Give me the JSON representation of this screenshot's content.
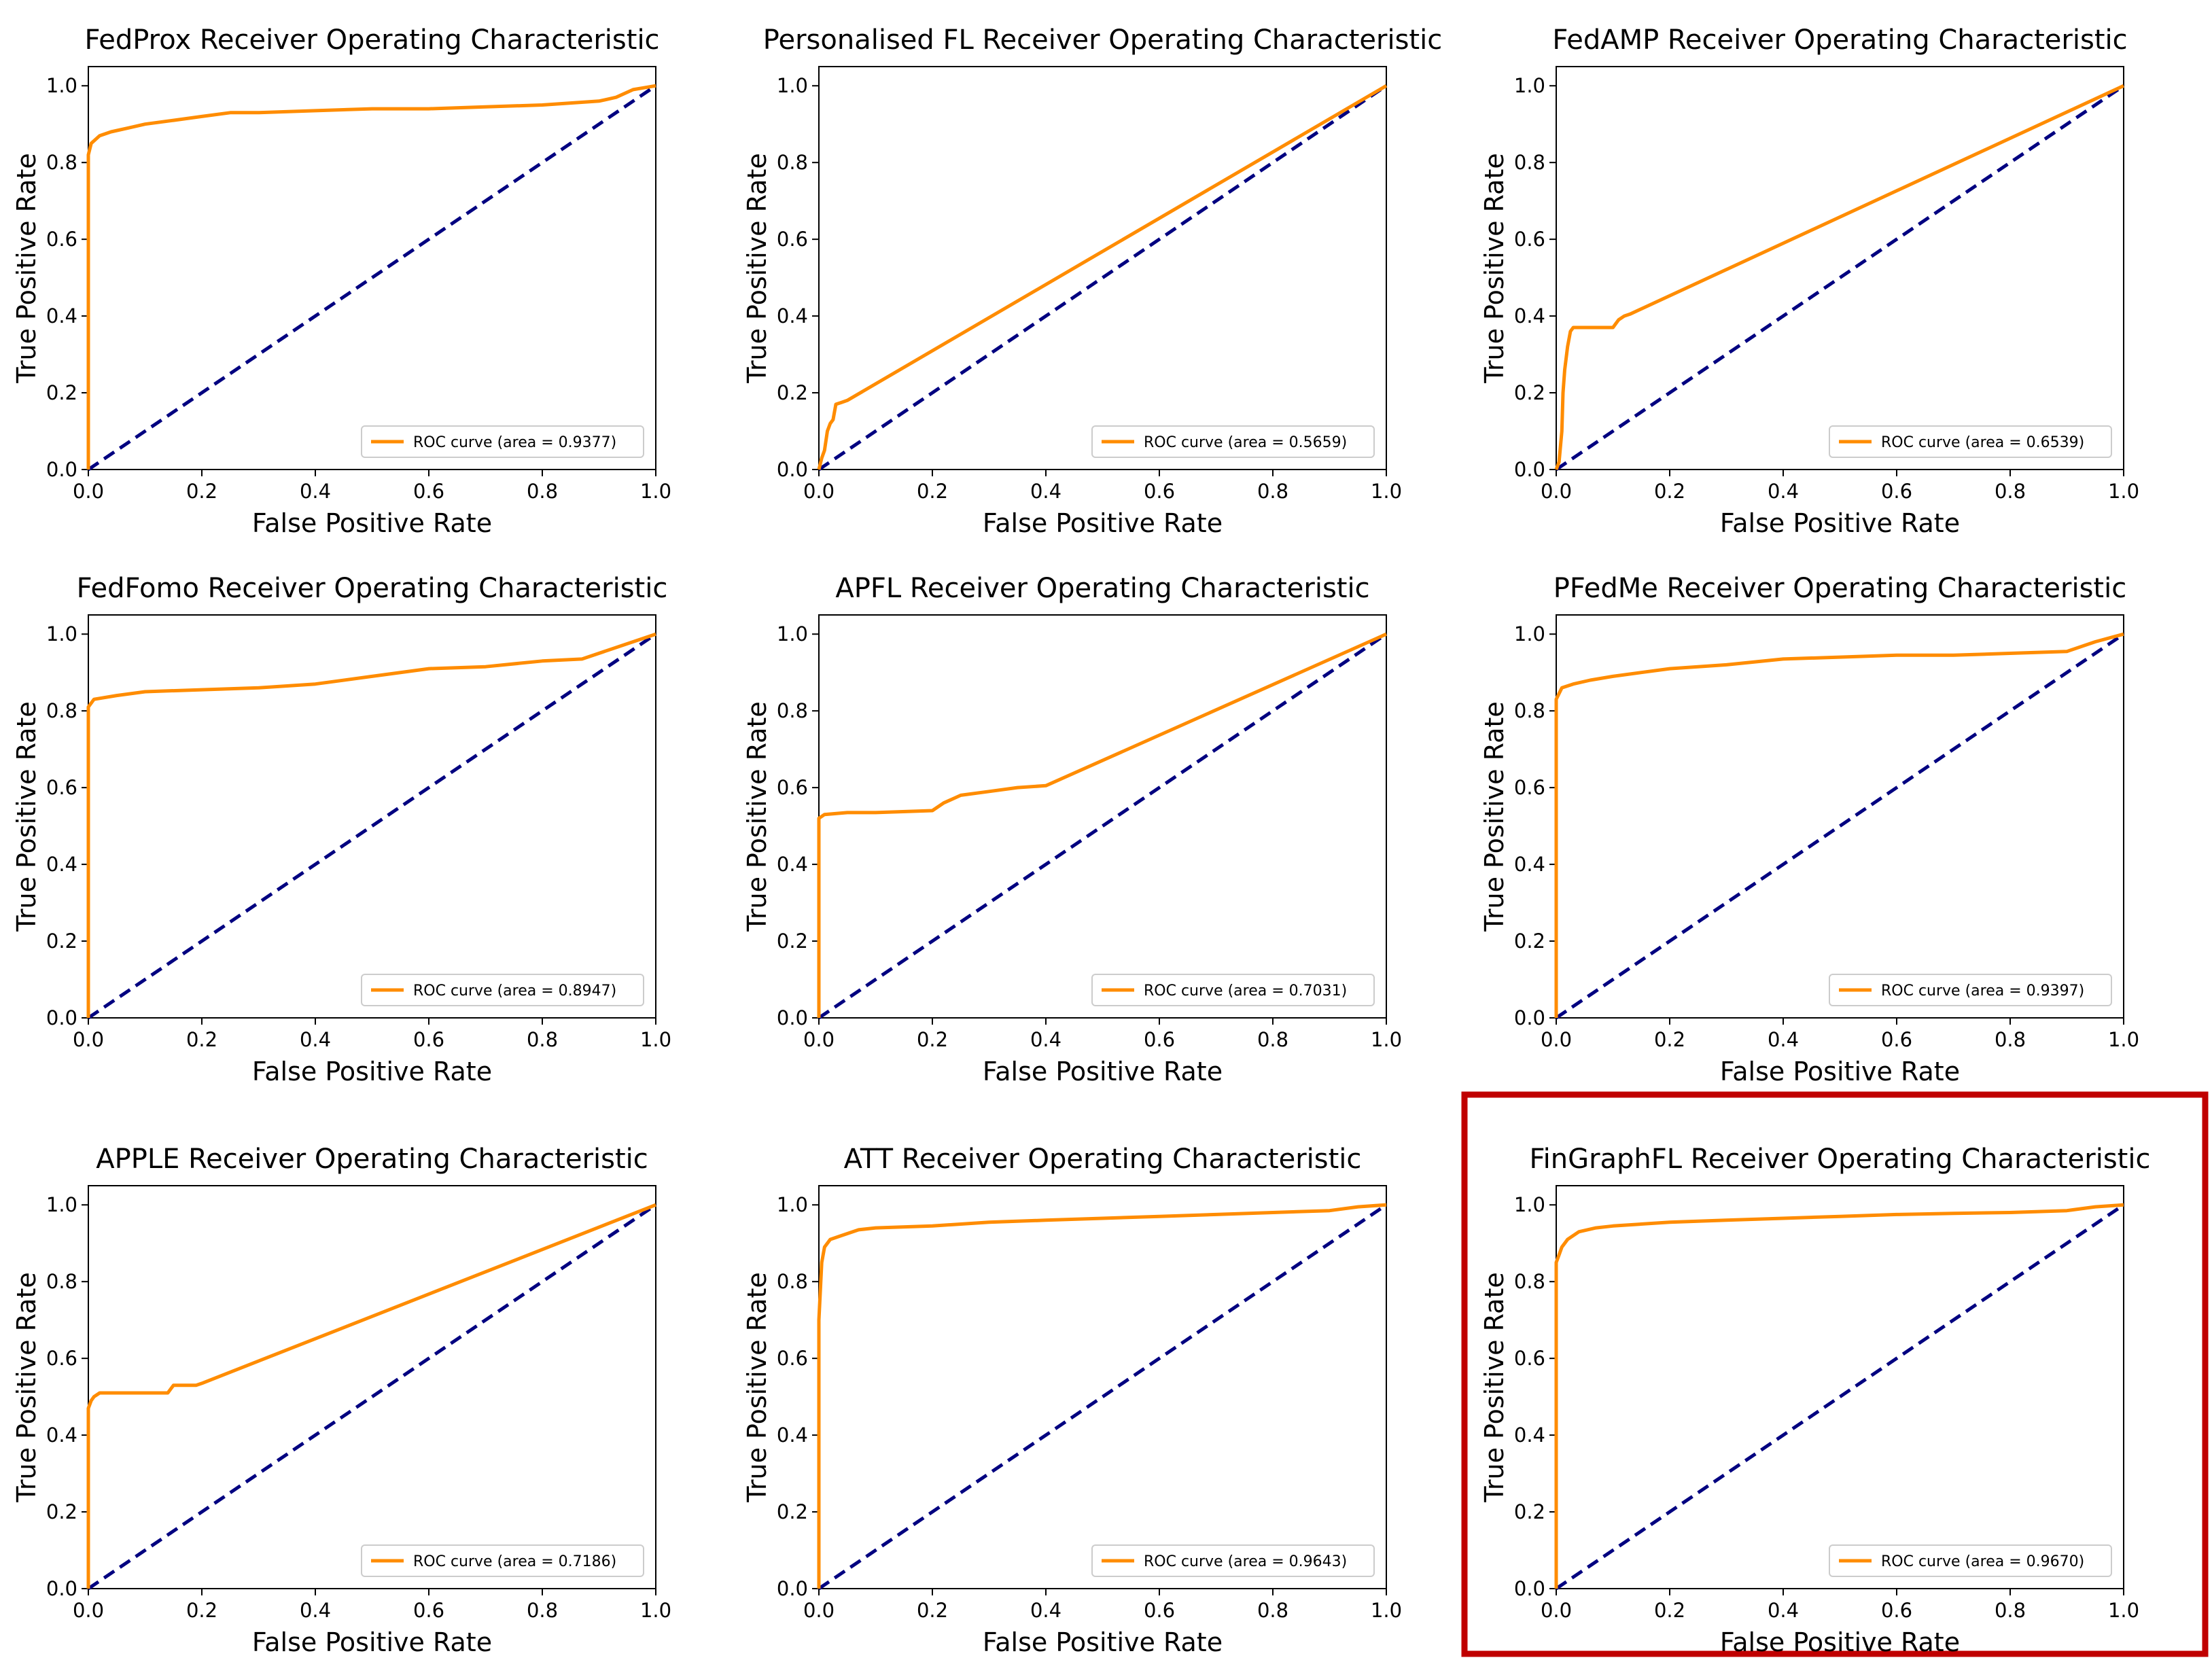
{
  "highlight_color": "#c00000",
  "colors": {
    "roc": "#ff8c00",
    "chance": "#000080",
    "frame": "#000000"
  },
  "axis": {
    "xlabel": "False Positive Rate",
    "ylabel": "True Positive Rate",
    "xlim": [
      0,
      1
    ],
    "ylim": [
      0,
      1.05
    ],
    "xticks": [
      0.0,
      0.2,
      0.4,
      0.6,
      0.8,
      1.0
    ],
    "yticks": [
      0.0,
      0.2,
      0.4,
      0.6,
      0.8,
      1.0
    ],
    "tick_labels": [
      "0.0",
      "0.2",
      "0.4",
      "0.6",
      "0.8",
      "1.0"
    ]
  },
  "chart_data": [
    {
      "type": "line",
      "title": "FedProx Receiver Operating Characteristic",
      "legend": "ROC curve (area = 0.9377)",
      "legend_loc": "lower-right",
      "xlabel": "False Positive Rate",
      "ylabel": "True Positive Rate",
      "xlim": [
        0,
        1
      ],
      "ylim": [
        0,
        1.05
      ],
      "roc": {
        "x": [
          0,
          0,
          0.005,
          0.02,
          0.04,
          0.07,
          0.1,
          0.15,
          0.2,
          0.25,
          0.3,
          0.4,
          0.5,
          0.6,
          0.7,
          0.8,
          0.9,
          0.93,
          0.96,
          1.0
        ],
        "y": [
          0,
          0.82,
          0.85,
          0.87,
          0.88,
          0.89,
          0.9,
          0.91,
          0.92,
          0.93,
          0.93,
          0.935,
          0.94,
          0.94,
          0.945,
          0.95,
          0.96,
          0.97,
          0.99,
          1.0
        ]
      },
      "chance": {
        "x": [
          0,
          1
        ],
        "y": [
          0,
          1
        ]
      }
    },
    {
      "type": "line",
      "title": "Personalised FL Receiver Operating Characteristic",
      "legend": "ROC curve (area = 0.5659)",
      "legend_loc": "lower-right",
      "xlabel": "False Positive Rate",
      "ylabel": "True Positive Rate",
      "xlim": [
        0,
        1
      ],
      "ylim": [
        0,
        1.05
      ],
      "roc": {
        "x": [
          0,
          0.005,
          0.01,
          0.015,
          0.02,
          0.025,
          0.03,
          0.04,
          0.05,
          1.0
        ],
        "y": [
          0,
          0.03,
          0.05,
          0.1,
          0.12,
          0.13,
          0.17,
          0.175,
          0.18,
          1.0
        ]
      },
      "chance": {
        "x": [
          0,
          1
        ],
        "y": [
          0,
          1
        ]
      }
    },
    {
      "type": "line",
      "title": "FedAMP Receiver Operating Characteristic",
      "legend": "ROC curve (area = 0.6539)",
      "legend_loc": "lower-right",
      "xlabel": "False Positive Rate",
      "ylabel": "True Positive Rate",
      "xlim": [
        0,
        1
      ],
      "ylim": [
        0,
        1.05
      ],
      "roc": {
        "x": [
          0,
          0.005,
          0.01,
          0.012,
          0.015,
          0.02,
          0.025,
          0.03,
          0.1,
          0.11,
          0.12,
          0.13,
          1.0
        ],
        "y": [
          0,
          0.02,
          0.1,
          0.2,
          0.26,
          0.32,
          0.36,
          0.37,
          0.37,
          0.39,
          0.4,
          0.405,
          1.0
        ]
      },
      "chance": {
        "x": [
          0,
          1
        ],
        "y": [
          0,
          1
        ]
      }
    },
    {
      "type": "line",
      "title": "FedFomo Receiver Operating Characteristic",
      "legend": "ROC curve (area = 0.8947)",
      "legend_loc": "lower-right",
      "xlabel": "False Positive Rate",
      "ylabel": "True Positive Rate",
      "xlim": [
        0,
        1
      ],
      "ylim": [
        0,
        1.05
      ],
      "roc": {
        "x": [
          0,
          0,
          0.01,
          0.05,
          0.1,
          0.2,
          0.3,
          0.4,
          0.5,
          0.6,
          0.7,
          0.8,
          0.87,
          1.0
        ],
        "y": [
          0,
          0.81,
          0.83,
          0.84,
          0.85,
          0.855,
          0.86,
          0.87,
          0.89,
          0.91,
          0.915,
          0.93,
          0.935,
          1.0
        ]
      },
      "chance": {
        "x": [
          0,
          1
        ],
        "y": [
          0,
          1
        ]
      }
    },
    {
      "type": "line",
      "title": "APFL Receiver Operating Characteristic",
      "legend": "ROC curve (area = 0.7031)",
      "legend_loc": "lower-right",
      "xlabel": "False Positive Rate",
      "ylabel": "True Positive Rate",
      "xlim": [
        0,
        1
      ],
      "ylim": [
        0,
        1.05
      ],
      "roc": {
        "x": [
          0,
          0,
          0.01,
          0.05,
          0.1,
          0.2,
          0.22,
          0.25,
          0.3,
          0.35,
          0.4,
          1.0
        ],
        "y": [
          0,
          0.52,
          0.53,
          0.535,
          0.535,
          0.54,
          0.56,
          0.58,
          0.59,
          0.6,
          0.605,
          1.0
        ]
      },
      "chance": {
        "x": [
          0,
          1
        ],
        "y": [
          0,
          1
        ]
      }
    },
    {
      "type": "line",
      "title": "PFedMe Receiver Operating Characteristic",
      "legend": "ROC curve (area = 0.9397)",
      "legend_loc": "lower-right",
      "xlabel": "False Positive Rate",
      "ylabel": "True Positive Rate",
      "xlim": [
        0,
        1
      ],
      "ylim": [
        0,
        1.05
      ],
      "roc": {
        "x": [
          0,
          0,
          0.01,
          0.03,
          0.06,
          0.1,
          0.15,
          0.2,
          0.3,
          0.4,
          0.5,
          0.6,
          0.7,
          0.8,
          0.9,
          0.95,
          1.0
        ],
        "y": [
          0,
          0.83,
          0.86,
          0.87,
          0.88,
          0.89,
          0.9,
          0.91,
          0.92,
          0.935,
          0.94,
          0.945,
          0.945,
          0.95,
          0.955,
          0.98,
          1.0
        ]
      },
      "chance": {
        "x": [
          0,
          1
        ],
        "y": [
          0,
          1
        ]
      }
    },
    {
      "type": "line",
      "title": "APPLE Receiver Operating Characteristic",
      "legend": "ROC curve (area = 0.7186)",
      "legend_loc": "lower-right",
      "xlabel": "False Positive Rate",
      "ylabel": "True Positive Rate",
      "xlim": [
        0,
        1
      ],
      "ylim": [
        0,
        1.05
      ],
      "roc": {
        "x": [
          0,
          0,
          0.005,
          0.01,
          0.02,
          0.14,
          0.15,
          0.19,
          0.2,
          1.0
        ],
        "y": [
          0,
          0.47,
          0.49,
          0.5,
          0.51,
          0.51,
          0.53,
          0.53,
          0.535,
          1.0
        ]
      },
      "chance": {
        "x": [
          0,
          1
        ],
        "y": [
          0,
          1
        ]
      }
    },
    {
      "type": "line",
      "title": "ATT Receiver Operating Characteristic",
      "legend": "ROC curve (area = 0.9643)",
      "legend_loc": "lower-right",
      "xlabel": "False Positive Rate",
      "ylabel": "True Positive Rate",
      "xlim": [
        0,
        1
      ],
      "ylim": [
        0,
        1.05
      ],
      "roc": {
        "x": [
          0,
          0,
          0.005,
          0.01,
          0.02,
          0.04,
          0.07,
          0.1,
          0.2,
          0.3,
          0.4,
          0.5,
          0.6,
          0.7,
          0.8,
          0.9,
          0.95,
          1.0
        ],
        "y": [
          0,
          0.7,
          0.85,
          0.89,
          0.91,
          0.92,
          0.935,
          0.94,
          0.945,
          0.955,
          0.96,
          0.965,
          0.97,
          0.975,
          0.98,
          0.985,
          0.995,
          1.0
        ]
      },
      "chance": {
        "x": [
          0,
          1
        ],
        "y": [
          0,
          1
        ]
      }
    },
    {
      "type": "line",
      "title": "FinGraphFL Receiver Operating Characteristic",
      "legend": "ROC curve (area = 0.9670)",
      "legend_loc": "lower-right",
      "highlighted": true,
      "xlabel": "False Positive Rate",
      "ylabel": "True Positive Rate",
      "xlim": [
        0,
        1
      ],
      "ylim": [
        0,
        1.05
      ],
      "roc": {
        "x": [
          0,
          0,
          0.005,
          0.01,
          0.02,
          0.04,
          0.07,
          0.1,
          0.2,
          0.3,
          0.4,
          0.5,
          0.6,
          0.7,
          0.8,
          0.9,
          0.95,
          1.0
        ],
        "y": [
          0,
          0.85,
          0.87,
          0.89,
          0.91,
          0.93,
          0.94,
          0.945,
          0.955,
          0.96,
          0.965,
          0.97,
          0.975,
          0.978,
          0.98,
          0.985,
          0.995,
          1.0
        ]
      },
      "chance": {
        "x": [
          0,
          1
        ],
        "y": [
          0,
          1
        ]
      }
    }
  ]
}
